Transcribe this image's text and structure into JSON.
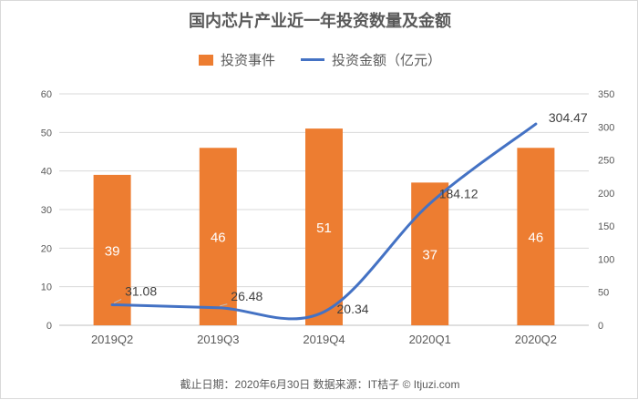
{
  "chart_data": {
    "type": "bar",
    "title": "国内芯片产业近一年投资数量及金额",
    "categories": [
      "2019Q2",
      "2019Q3",
      "2019Q4",
      "2020Q1",
      "2020Q2"
    ],
    "series": [
      {
        "name": "投资事件",
        "type": "bar",
        "axis": "left",
        "color": "#ED7D31",
        "values": [
          39,
          46,
          51,
          37,
          46
        ],
        "labels": [
          "39",
          "46",
          "51",
          "37",
          "46"
        ]
      },
      {
        "name": "投资金额（亿元）",
        "type": "line",
        "axis": "right",
        "color": "#4472C4",
        "values": [
          31.08,
          26.48,
          20.34,
          184.12,
          304.47
        ],
        "labels": [
          "31.08",
          "26.48",
          "20.34",
          "184.12",
          "304.47"
        ]
      }
    ],
    "y_left": {
      "min": 0,
      "max": 60,
      "ticks": [
        "0",
        "10",
        "20",
        "30",
        "40",
        "50",
        "60"
      ]
    },
    "y_right": {
      "min": 0,
      "max": 350,
      "ticks": [
        "0",
        "50",
        "100",
        "150",
        "200",
        "250",
        "300",
        "350"
      ]
    },
    "grid": true,
    "legend_position": "top"
  },
  "footer": "截止日期：2020年6月30日    数据来源：IT桔子 © Itjuzi.com"
}
